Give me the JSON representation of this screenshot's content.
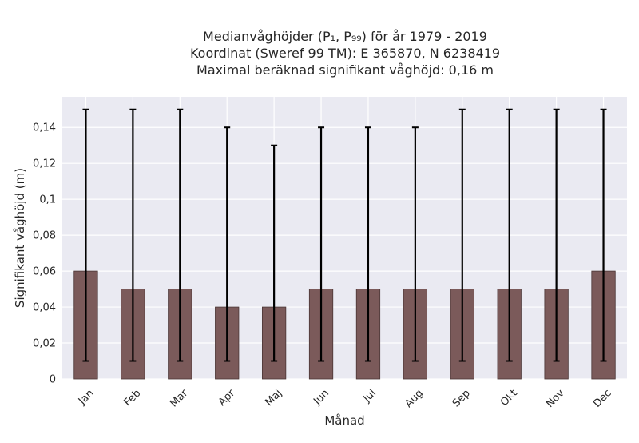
{
  "chart_data": {
    "type": "bar",
    "title_lines": [
      "Medianvåghöjder (P₁, P₉₉) för år 1979 - 2019",
      "Koordinat (Sweref 99 TM): E 365870, N 6238419",
      "Maximal beräknad signifikant våghöjd: 0,16 m"
    ],
    "xlabel": "Månad",
    "ylabel": "Signifikant våghöjd (m)",
    "categories": [
      "Jan",
      "Feb",
      "Mar",
      "Apr",
      "Maj",
      "Jun",
      "Jul",
      "Aug",
      "Sep",
      "Okt",
      "Nov",
      "Dec"
    ],
    "values": [
      0.06,
      0.05,
      0.05,
      0.04,
      0.04,
      0.05,
      0.05,
      0.05,
      0.05,
      0.05,
      0.05,
      0.06
    ],
    "err_low": [
      0.01,
      0.01,
      0.01,
      0.01,
      0.01,
      0.01,
      0.01,
      0.01,
      0.01,
      0.01,
      0.01,
      0.01
    ],
    "err_high": [
      0.15,
      0.15,
      0.15,
      0.14,
      0.13,
      0.14,
      0.14,
      0.14,
      0.15,
      0.15,
      0.15,
      0.15
    ],
    "ylim": [
      0,
      0.157
    ],
    "yticks": [
      0,
      0.02,
      0.04,
      0.06,
      0.08,
      0.1,
      0.12,
      0.14
    ],
    "ytick_labels": [
      "0",
      "0,02",
      "0,04",
      "0,06",
      "0,08",
      "0,1",
      "0,12",
      "0,14"
    ],
    "grid": true,
    "colors": {
      "bar": "#7b5a5a",
      "bar_edge": "#4a3535",
      "error": "#000000",
      "plot_bg": "#eaeaf2",
      "grid": "#ffffff"
    }
  }
}
